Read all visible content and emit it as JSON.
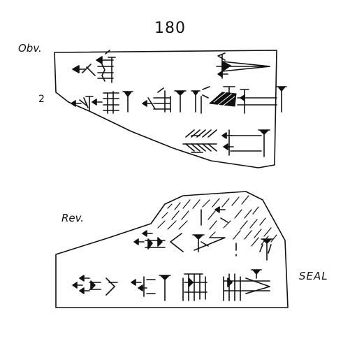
{
  "tablet_number": "180",
  "obverse_label": "Obv.",
  "line_number": "2",
  "reverse_label": "Rev.",
  "seal_label": "SEAL",
  "ink_color": "#111111",
  "paper_color": "#ffffff"
}
